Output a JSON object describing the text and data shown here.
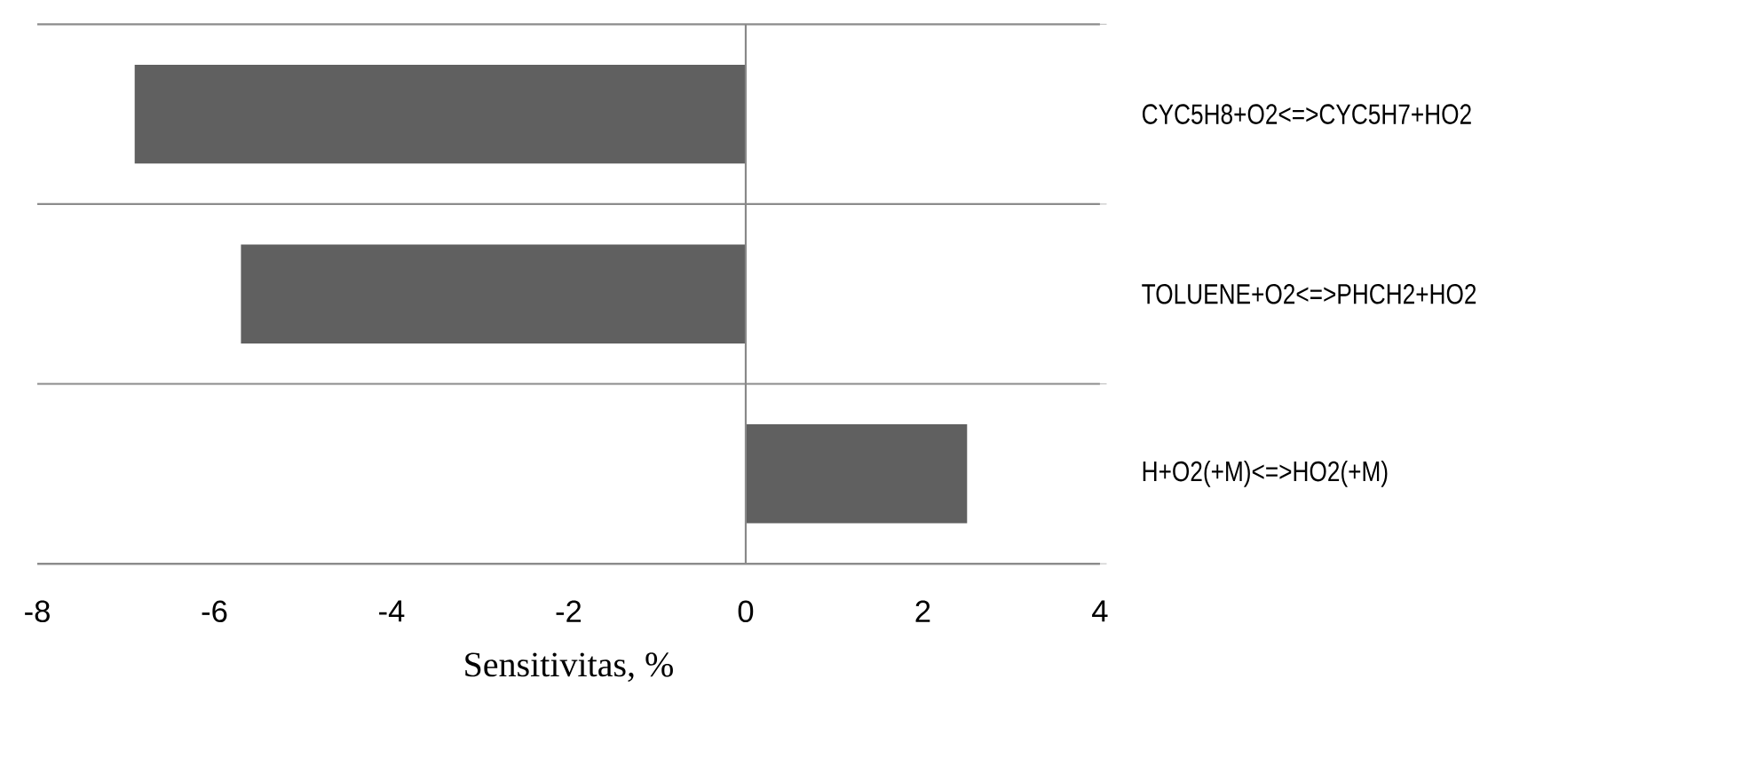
{
  "chart_data": {
    "type": "bar",
    "orientation": "horizontal",
    "xlabel": "Sensitivitas, %",
    "categories": [
      "CYC5H8+O2<=>CYC5H7+HO2",
      "TOLUENE+O2<=>PHCH2+HO2",
      "H+O2(+M)<=>HO2(+M)"
    ],
    "values": [
      -6.9,
      -5.7,
      2.5
    ],
    "color": "#606060",
    "xlim": [
      -8,
      4
    ],
    "xticks": [
      -8,
      -6,
      -4,
      -2,
      0,
      2,
      4
    ],
    "grid": "y",
    "ref_lines": [
      {
        "axis": "x",
        "value": 0,
        "color": "#888888"
      }
    ]
  }
}
